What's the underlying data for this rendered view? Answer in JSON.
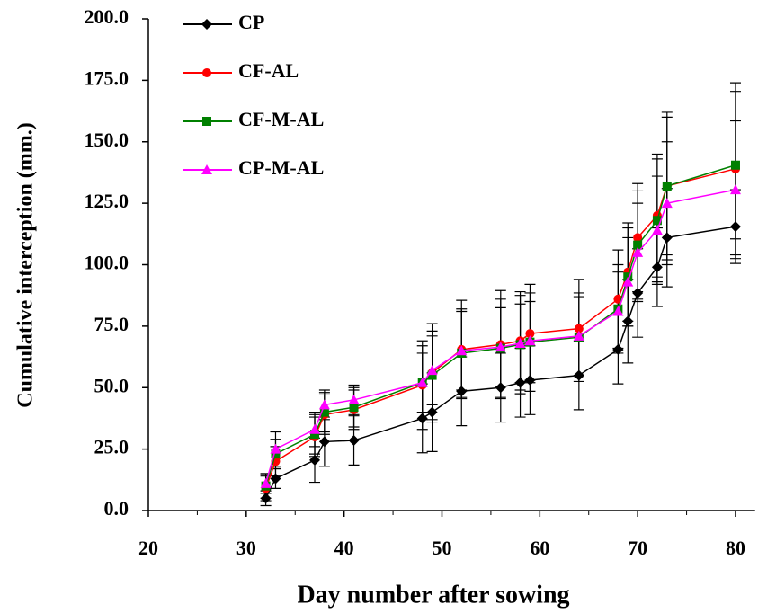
{
  "chart_data": {
    "type": "line",
    "xlabel": "Day number after sowing",
    "ylabel": "Cumulative interception (mm.)",
    "x": [
      32,
      33,
      37,
      38,
      41,
      48,
      49,
      52,
      56,
      58,
      59,
      64,
      68,
      69,
      70,
      72,
      73,
      80
    ],
    "series": [
      {
        "name": "CP",
        "color": "#000000",
        "marker": "diamond",
        "values": [
          5,
          13,
          20.5,
          28,
          28.5,
          37.5,
          40,
          48.5,
          50,
          52,
          53,
          55,
          65.5,
          77,
          88.5,
          99,
          111,
          115.5
        ],
        "errors": [
          3,
          4,
          9,
          10,
          10,
          14,
          16,
          14,
          14,
          14,
          14,
          14,
          14,
          17,
          18,
          16,
          20,
          15
        ]
      },
      {
        "name": "CF-AL",
        "color": "#ff0000",
        "marker": "circle",
        "values": [
          9,
          20,
          30,
          39,
          41,
          51,
          56,
          65.5,
          67.5,
          69,
          72,
          74,
          86,
          97,
          111,
          120,
          132,
          139
        ],
        "errors": [
          5,
          6,
          8,
          8,
          8,
          18,
          20,
          20,
          22,
          20,
          20,
          20,
          20,
          20,
          22,
          25,
          30,
          35
        ]
      },
      {
        "name": "CF-M-AL",
        "color": "#008000",
        "marker": "square",
        "values": [
          10,
          23,
          31,
          40,
          42,
          52,
          55,
          64,
          66,
          67.5,
          68.5,
          70.5,
          82,
          95,
          108,
          118,
          132,
          140.5
        ],
        "errors": [
          5,
          6,
          8,
          8,
          8,
          15,
          18,
          18,
          20,
          20,
          20,
          18,
          18,
          20,
          22,
          25,
          28,
          30
        ]
      },
      {
        "name": "CP-M-AL",
        "color": "#ff00ff",
        "marker": "triangle",
        "values": [
          11,
          25,
          33,
          43,
          45,
          52,
          57,
          65,
          66.5,
          68,
          69,
          71,
          81,
          93,
          105,
          114,
          125,
          130.5
        ],
        "errors": [
          4,
          7,
          7,
          6,
          6,
          12,
          14,
          16,
          16,
          16,
          16,
          16,
          16,
          18,
          20,
          22,
          25,
          28
        ]
      }
    ],
    "xlim": [
      20,
      82
    ],
    "xticks": [
      20,
      30,
      40,
      50,
      60,
      70,
      80
    ],
    "xminorticks": [
      25,
      35,
      45,
      55,
      65,
      75
    ],
    "ylim": [
      0,
      200
    ],
    "yticks": [
      {
        "value": 0,
        "label": "0.0"
      },
      {
        "value": 25,
        "label": "25.0"
      },
      {
        "value": 50,
        "label": "50.0"
      },
      {
        "value": 75,
        "label": "75.0"
      },
      {
        "value": 100,
        "label": "100.0"
      },
      {
        "value": 125,
        "label": "125.0"
      },
      {
        "value": 150,
        "label": "150.0"
      },
      {
        "value": 175,
        "label": "175.0"
      },
      {
        "value": 200,
        "label": "200.0"
      }
    ],
    "legend": "top-left"
  }
}
